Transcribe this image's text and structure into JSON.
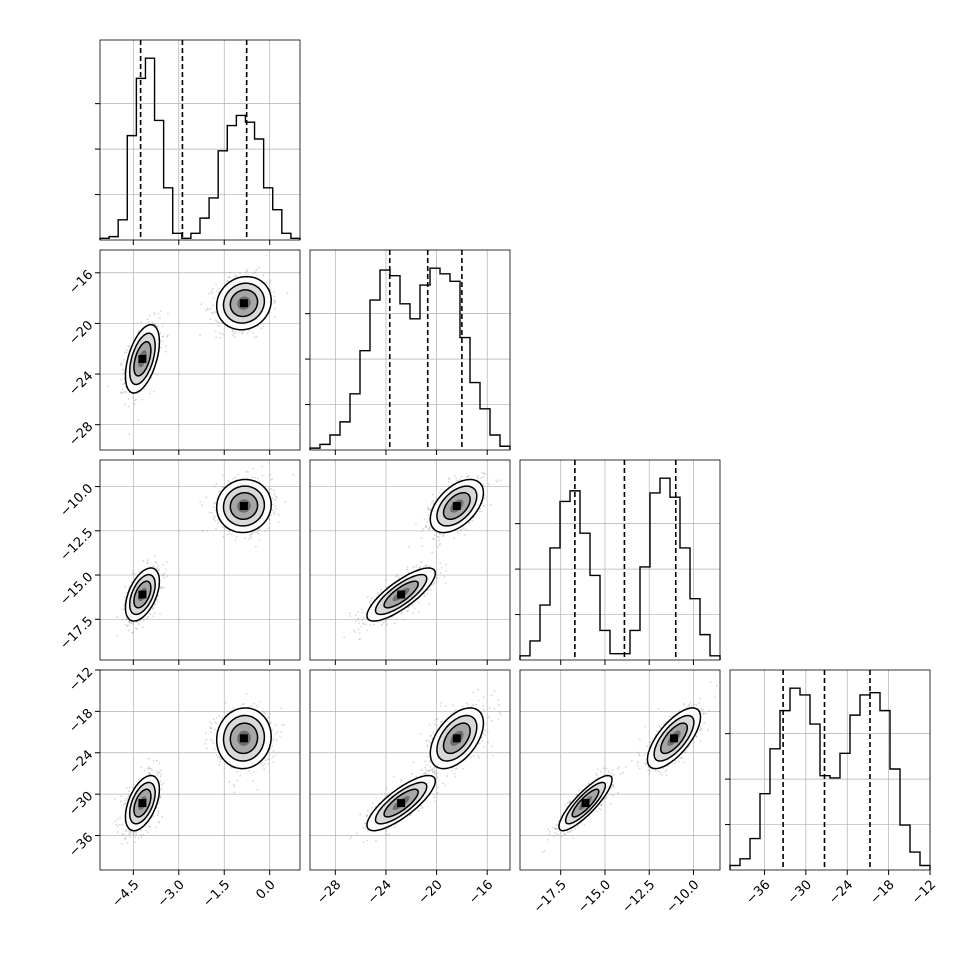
{
  "chart_data": {
    "type": "corner",
    "grid": true,
    "quantile_lines": [
      0.16,
      0.5,
      0.84
    ],
    "colors": {
      "hist": "#000000",
      "quantile": "#000000",
      "grid": "#b0b0b0",
      "points": "#8c8c8c",
      "contour": "#000000"
    },
    "params": [
      {
        "range": [
          -5.6,
          1.0
        ],
        "ticks": [
          "-4.5",
          "-3.0",
          "-1.5",
          "0.0"
        ],
        "tick_values": [
          -4.5,
          -3.0,
          -1.5,
          0.0
        ],
        "quantiles": [
          -4.26,
          -2.88,
          -0.76
        ]
      },
      {
        "range": [
          -30,
          -14.2
        ],
        "ticks": [
          "-28",
          "-24",
          "-20",
          "-16"
        ],
        "tick_values": [
          -28,
          -24,
          -20,
          -16
        ],
        "quantiles": [
          -23.7,
          -20.7,
          -18.0
        ]
      },
      {
        "range": [
          -19.8,
          -8.5
        ],
        "ticks": [
          "-17.5",
          "-15.0",
          "-12.5",
          "-10.0"
        ],
        "tick_values": [
          -17.5,
          -15.0,
          -12.5,
          -10.0
        ],
        "quantiles": [
          -16.7,
          -13.9,
          -11.0
        ]
      },
      {
        "range": [
          -41,
          -12
        ],
        "ticks": [
          "-36",
          "-30",
          "-24",
          "-18",
          "-12"
        ],
        "tick_values": [
          -36,
          -30,
          -24,
          -18,
          -12
        ],
        "quantiles": [
          -33.3,
          -27.3,
          -20.7
        ]
      }
    ],
    "histograms": [
      {
        "param": 0,
        "counts": [
          1,
          2,
          12,
          62,
          96,
          108,
          71,
          31,
          4,
          1,
          4,
          13,
          25,
          53,
          68,
          74,
          70,
          60,
          31,
          18,
          4,
          1
        ]
      },
      {
        "param": 1,
        "counts": [
          1,
          3,
          8,
          15,
          30,
          53,
          80,
          96,
          93,
          78,
          70,
          88,
          97,
          94,
          90,
          60,
          36,
          22,
          8,
          2
        ]
      },
      {
        "param": 2,
        "counts": [
          2,
          9,
          26,
          53,
          75,
          80,
          60,
          40,
          14,
          3,
          3,
          14,
          44,
          79,
          86,
          77,
          53,
          29,
          12,
          2
        ]
      },
      {
        "param": 3,
        "counts": [
          2,
          5,
          14,
          34,
          54,
          71,
          81,
          78,
          65,
          42,
          41,
          52,
          69,
          78,
          79,
          71,
          45,
          20,
          8,
          2
        ]
      }
    ],
    "components": [
      {
        "mean": [
          -4.2,
          -22.8,
          -16.1,
          -31.3
        ],
        "sd": [
          0.28,
          1.35,
          0.75,
          2.0
        ]
      },
      {
        "mean": [
          -0.85,
          -18.4,
          -11.1,
          -21.9
        ],
        "sd": [
          0.45,
          1.05,
          0.75,
          2.2
        ]
      }
    ],
    "correlations": [
      {
        "pair": [
          0,
          1
        ],
        "rho": [
          0.5,
          0.1
        ]
      },
      {
        "pair": [
          0,
          2
        ],
        "rho": [
          0.5,
          0.05
        ]
      },
      {
        "pair": [
          0,
          3
        ],
        "rho": [
          0.5,
          0.05
        ]
      },
      {
        "pair": [
          1,
          2
        ],
        "rho": [
          0.8,
          0.5
        ]
      },
      {
        "pair": [
          1,
          3
        ],
        "rho": [
          0.8,
          0.5
        ]
      },
      {
        "pair": [
          2,
          3
        ],
        "rho": [
          0.85,
          0.7
        ]
      }
    ]
  }
}
